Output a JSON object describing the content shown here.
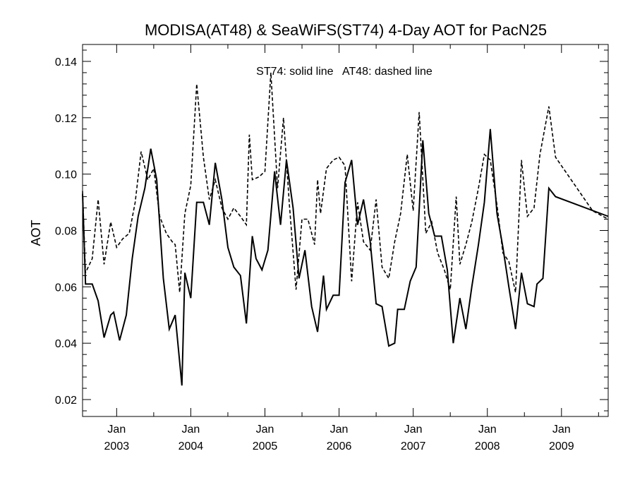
{
  "chart_data": {
    "type": "line",
    "title": "MODISA(AT48) & SeaWiFS(ST74) 4-Day AOT for PacN25",
    "annotation": "ST74: solid line   AT48: dashed line",
    "ylabel": "AOT",
    "xlabel": "",
    "ylim": [
      0.014,
      0.146
    ],
    "yticks": [
      0.02,
      0.04,
      0.06,
      0.08,
      0.1,
      0.12,
      0.14
    ],
    "ytick_labels": [
      "0.02",
      "0.04",
      "0.06",
      "0.08",
      "0.10",
      "0.12",
      "0.14"
    ],
    "xlim": [
      2002.54,
      2009.63
    ],
    "xticks": [
      {
        "x": 2003.0,
        "month": "Jan",
        "year": "2003"
      },
      {
        "x": 2004.0,
        "month": "Jan",
        "year": "2004"
      },
      {
        "x": 2005.0,
        "month": "Jan",
        "year": "2005"
      },
      {
        "x": 2006.0,
        "month": "Jan",
        "year": "2006"
      },
      {
        "x": 2007.0,
        "month": "Jan",
        "year": "2007"
      },
      {
        "x": 2008.0,
        "month": "Jan",
        "year": "2008"
      },
      {
        "x": 2009.0,
        "month": "Jan",
        "year": "2009"
      }
    ],
    "grid": false,
    "series": [
      {
        "name": "ST74",
        "style": "solid",
        "color": "#000000",
        "points": [
          [
            2002.54,
            0.093
          ],
          [
            2002.58,
            0.061
          ],
          [
            2002.67,
            0.061
          ],
          [
            2002.75,
            0.055
          ],
          [
            2002.83,
            0.042
          ],
          [
            2002.92,
            0.05
          ],
          [
            2002.96,
            0.051
          ],
          [
            2003.04,
            0.041
          ],
          [
            2003.13,
            0.05
          ],
          [
            2003.21,
            0.07
          ],
          [
            2003.29,
            0.085
          ],
          [
            2003.38,
            0.095
          ],
          [
            2003.46,
            0.109
          ],
          [
            2003.54,
            0.098
          ],
          [
            2003.63,
            0.063
          ],
          [
            2003.71,
            0.045
          ],
          [
            2003.79,
            0.05
          ],
          [
            2003.88,
            0.025
          ],
          [
            2003.92,
            0.065
          ],
          [
            2004.0,
            0.056
          ],
          [
            2004.08,
            0.09
          ],
          [
            2004.17,
            0.09
          ],
          [
            2004.25,
            0.082
          ],
          [
            2004.33,
            0.104
          ],
          [
            2004.42,
            0.091
          ],
          [
            2004.5,
            0.074
          ],
          [
            2004.58,
            0.067
          ],
          [
            2004.67,
            0.064
          ],
          [
            2004.75,
            0.047
          ],
          [
            2004.83,
            0.078
          ],
          [
            2004.88,
            0.07
          ],
          [
            2004.96,
            0.066
          ],
          [
            2005.04,
            0.073
          ],
          [
            2005.13,
            0.101
          ],
          [
            2005.21,
            0.082
          ],
          [
            2005.29,
            0.105
          ],
          [
            2005.38,
            0.088
          ],
          [
            2005.46,
            0.063
          ],
          [
            2005.54,
            0.073
          ],
          [
            2005.63,
            0.053
          ],
          [
            2005.71,
            0.044
          ],
          [
            2005.79,
            0.064
          ],
          [
            2005.83,
            0.052
          ],
          [
            2005.92,
            0.057
          ],
          [
            2006.0,
            0.057
          ],
          [
            2006.08,
            0.097
          ],
          [
            2006.17,
            0.105
          ],
          [
            2006.25,
            0.082
          ],
          [
            2006.33,
            0.091
          ],
          [
            2006.42,
            0.076
          ],
          [
            2006.5,
            0.054
          ],
          [
            2006.58,
            0.053
          ],
          [
            2006.67,
            0.039
          ],
          [
            2006.75,
            0.04
          ],
          [
            2006.79,
            0.052
          ],
          [
            2006.88,
            0.052
          ],
          [
            2006.96,
            0.062
          ],
          [
            2007.04,
            0.067
          ],
          [
            2007.13,
            0.112
          ],
          [
            2007.21,
            0.086
          ],
          [
            2007.29,
            0.078
          ],
          [
            2007.38,
            0.078
          ],
          [
            2007.46,
            0.066
          ],
          [
            2007.54,
            0.04
          ],
          [
            2007.63,
            0.056
          ],
          [
            2007.71,
            0.045
          ],
          [
            2007.79,
            0.06
          ],
          [
            2007.88,
            0.075
          ],
          [
            2007.96,
            0.09
          ],
          [
            2008.04,
            0.116
          ],
          [
            2008.13,
            0.086
          ],
          [
            2008.21,
            0.074
          ],
          [
            2008.29,
            0.06
          ],
          [
            2008.38,
            0.045
          ],
          [
            2008.46,
            0.065
          ],
          [
            2008.54,
            0.054
          ],
          [
            2008.63,
            0.053
          ],
          [
            2008.67,
            0.061
          ],
          [
            2008.75,
            0.063
          ],
          [
            2008.83,
            0.095
          ],
          [
            2008.92,
            0.092
          ],
          [
            2009.63,
            0.085
          ]
        ]
      },
      {
        "name": "AT48",
        "style": "dashed",
        "color": "#000000",
        "points": [
          [
            2002.54,
            0.094
          ],
          [
            2002.58,
            0.065
          ],
          [
            2002.67,
            0.07
          ],
          [
            2002.75,
            0.091
          ],
          [
            2002.83,
            0.068
          ],
          [
            2002.92,
            0.083
          ],
          [
            2003.0,
            0.074
          ],
          [
            2003.08,
            0.077
          ],
          [
            2003.17,
            0.079
          ],
          [
            2003.25,
            0.09
          ],
          [
            2003.33,
            0.108
          ],
          [
            2003.42,
            0.098
          ],
          [
            2003.5,
            0.102
          ],
          [
            2003.58,
            0.085
          ],
          [
            2003.67,
            0.079
          ],
          [
            2003.75,
            0.076
          ],
          [
            2003.79,
            0.075
          ],
          [
            2003.85,
            0.058
          ],
          [
            2003.92,
            0.086
          ],
          [
            2004.0,
            0.096
          ],
          [
            2004.08,
            0.132
          ],
          [
            2004.17,
            0.106
          ],
          [
            2004.25,
            0.091
          ],
          [
            2004.33,
            0.098
          ],
          [
            2004.42,
            0.088
          ],
          [
            2004.5,
            0.084
          ],
          [
            2004.58,
            0.088
          ],
          [
            2004.67,
            0.085
          ],
          [
            2004.75,
            0.082
          ],
          [
            2004.79,
            0.114
          ],
          [
            2004.83,
            0.098
          ],
          [
            2004.92,
            0.099
          ],
          [
            2005.0,
            0.101
          ],
          [
            2005.08,
            0.136
          ],
          [
            2005.17,
            0.095
          ],
          [
            2005.25,
            0.12
          ],
          [
            2005.33,
            0.089
          ],
          [
            2005.42,
            0.059
          ],
          [
            2005.5,
            0.084
          ],
          [
            2005.58,
            0.084
          ],
          [
            2005.67,
            0.075
          ],
          [
            2005.71,
            0.098
          ],
          [
            2005.75,
            0.086
          ],
          [
            2005.83,
            0.102
          ],
          [
            2005.92,
            0.105
          ],
          [
            2006.0,
            0.106
          ],
          [
            2006.08,
            0.103
          ],
          [
            2006.17,
            0.062
          ],
          [
            2006.25,
            0.09
          ],
          [
            2006.33,
            0.076
          ],
          [
            2006.42,
            0.073
          ],
          [
            2006.5,
            0.091
          ],
          [
            2006.58,
            0.067
          ],
          [
            2006.67,
            0.063
          ],
          [
            2006.75,
            0.076
          ],
          [
            2006.83,
            0.086
          ],
          [
            2006.92,
            0.107
          ],
          [
            2007.0,
            0.087
          ],
          [
            2007.08,
            0.122
          ],
          [
            2007.17,
            0.079
          ],
          [
            2007.25,
            0.083
          ],
          [
            2007.33,
            0.072
          ],
          [
            2007.42,
            0.066
          ],
          [
            2007.5,
            0.059
          ],
          [
            2007.58,
            0.092
          ],
          [
            2007.63,
            0.068
          ],
          [
            2007.71,
            0.075
          ],
          [
            2007.79,
            0.083
          ],
          [
            2007.88,
            0.095
          ],
          [
            2007.96,
            0.107
          ],
          [
            2008.04,
            0.105
          ],
          [
            2008.13,
            0.089
          ],
          [
            2008.21,
            0.072
          ],
          [
            2008.29,
            0.069
          ],
          [
            2008.38,
            0.058
          ],
          [
            2008.46,
            0.105
          ],
          [
            2008.54,
            0.085
          ],
          [
            2008.63,
            0.088
          ],
          [
            2008.71,
            0.107
          ],
          [
            2008.83,
            0.124
          ],
          [
            2008.92,
            0.106
          ],
          [
            2009.42,
            0.087
          ],
          [
            2009.63,
            0.084
          ]
        ]
      }
    ]
  }
}
